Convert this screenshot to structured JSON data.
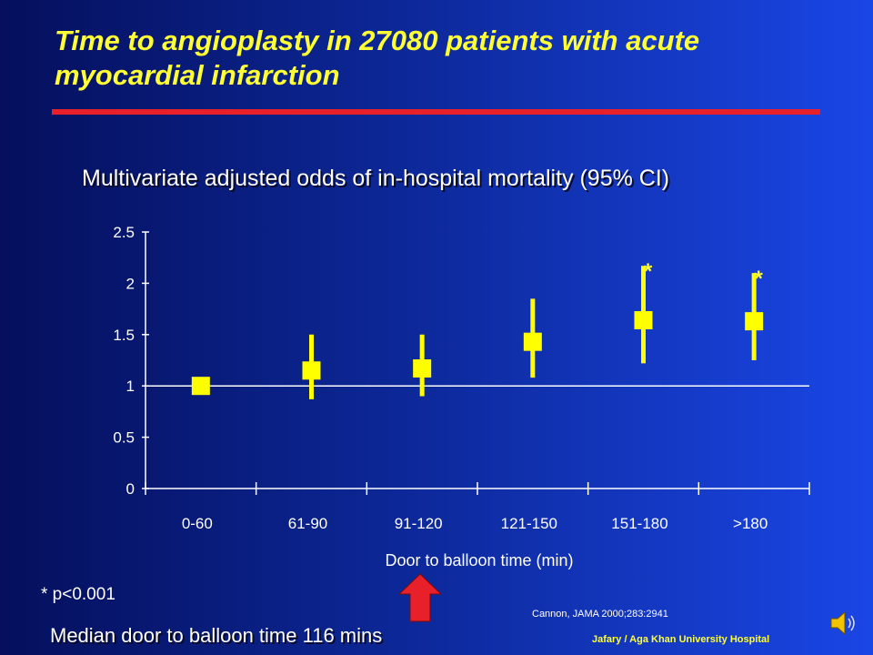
{
  "slide": {
    "title": "Time to angioplasty in 27080 patients with acute myocardial infarction",
    "footnote": "* p<0.001",
    "median_note": "Median door to balloon time 116 mins",
    "citation": "Cannon,  JAMA 2000;283:2941",
    "credit": "Jafary / Aga Khan University Hospital",
    "arrow_color": "#e8202a",
    "title_color": "#ffff33",
    "rule_color": "#e8202a",
    "speaker_icon": "speaker-icon"
  },
  "chart_data": {
    "type": "scatter",
    "title": "Multivariate adjusted odds of in-hospital mortality (95% CI)",
    "xlabel": "Door to balloon time (min)",
    "ylabel": "",
    "categories": [
      "0-60",
      "61-90",
      "91-120",
      "121-150",
      "151-180",
      ">180"
    ],
    "ylim": [
      0,
      2.5
    ],
    "yticks": [
      "0",
      "0.5",
      "1",
      "1.5",
      "2",
      "2.5"
    ],
    "reference_line": 1,
    "grid": false,
    "series": [
      {
        "values": [
          1.0,
          1.15,
          1.17,
          1.43,
          1.64,
          1.63
        ],
        "ci_low": [
          1.0,
          0.87,
          0.9,
          1.08,
          1.22,
          1.25
        ],
        "ci_high": [
          1.0,
          1.5,
          1.5,
          1.85,
          2.17,
          2.1
        ],
        "significant": [
          false,
          false,
          false,
          false,
          true,
          true
        ]
      }
    ],
    "significance_marker": "*",
    "marker_color": "#ffff00",
    "axis_color": "#ffffff"
  }
}
